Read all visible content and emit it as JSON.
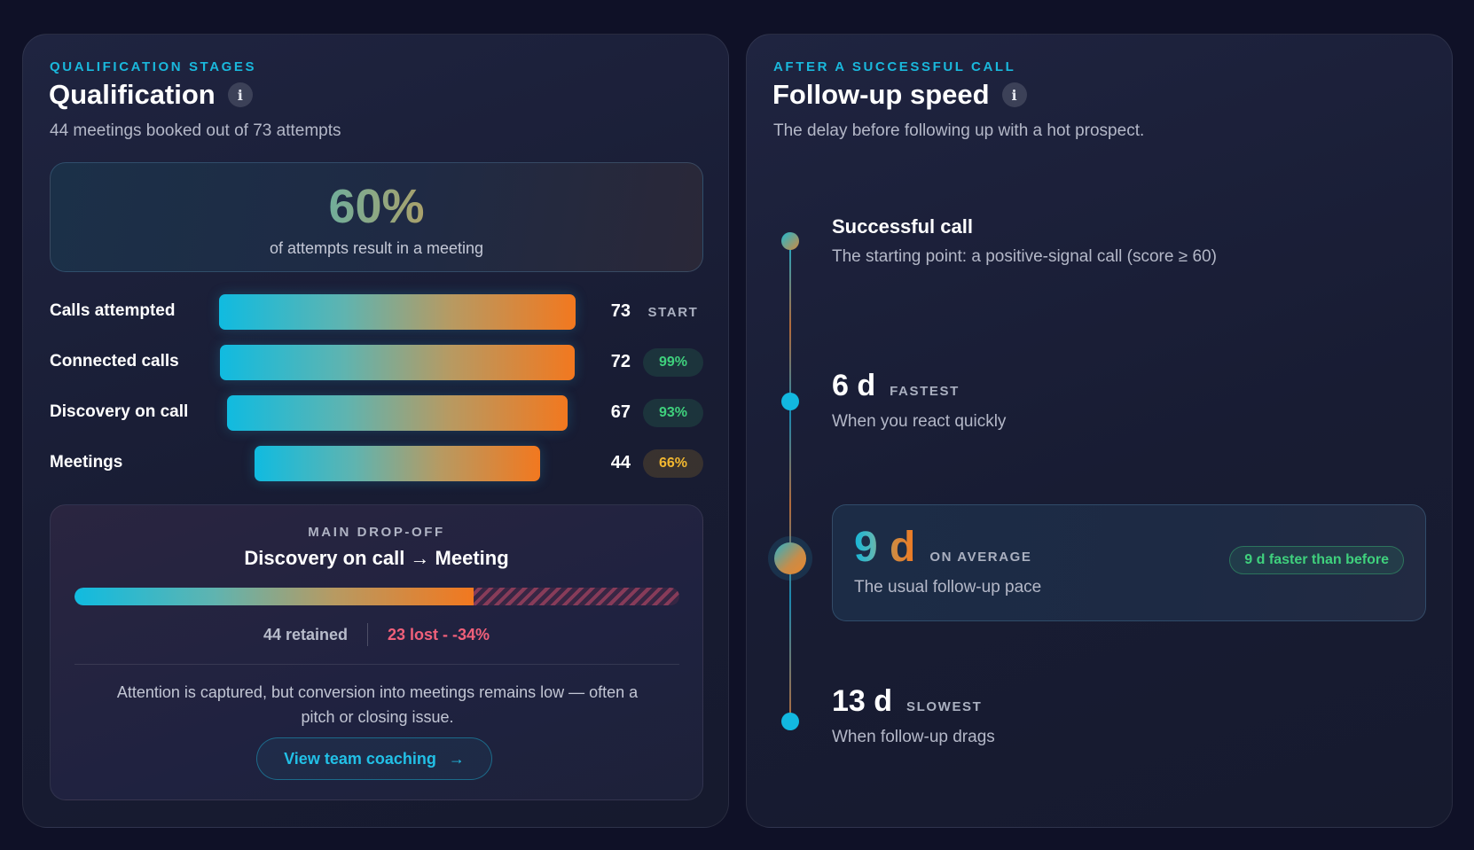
{
  "qualification": {
    "eyebrow": "QUALIFICATION STAGES",
    "title": "Qualification",
    "info_icon_glyph": "i",
    "subtitle": "44 meetings booked out of 73 attempts",
    "hero": {
      "value": "60%",
      "caption": "of attempts result in a meeting"
    },
    "funnel": [
      {
        "label": "Calls attempted",
        "count": "73",
        "badge": "START",
        "badge_type": "start",
        "value": 73
      },
      {
        "label": "Connected calls",
        "count": "72",
        "badge": "99%",
        "badge_type": "green",
        "value": 72
      },
      {
        "label": "Discovery on call",
        "count": "67",
        "badge": "93%",
        "badge_type": "green",
        "value": 67
      },
      {
        "label": "Meetings",
        "count": "44",
        "badge": "66%",
        "badge_type": "yellow",
        "value": 44
      }
    ],
    "dropoff": {
      "eyebrow": "MAIN DROP-OFF",
      "title": "Discovery on call → Meeting",
      "retained_fraction": 0.66,
      "retained": "44 retained",
      "lost": "23 lost - -34%",
      "note": "Attention is captured, but conversion into meetings remains low — often a pitch or closing issue.",
      "button_label": "View team coaching",
      "button_arrow": "→"
    }
  },
  "followup": {
    "eyebrow": "AFTER A SUCCESSFUL CALL",
    "title": "Follow-up speed",
    "info_icon_glyph": "i",
    "subtitle": "The delay before following up with a hot prospect.",
    "start": {
      "title": "Successful call",
      "desc": "The starting point: a positive-signal call (score ≥ 60)"
    },
    "fastest": {
      "value": "6 d",
      "tag": "FASTEST",
      "desc": "When you react quickly"
    },
    "average": {
      "value": "9 d",
      "tag": "ON AVERAGE",
      "desc": "The usual follow-up pace",
      "badge": "9 d faster than before"
    },
    "slowest": {
      "value": "13 d",
      "tag": "SLOWEST",
      "desc": "When follow-up drags"
    }
  },
  "colors": {
    "accent_cyan": "#1ab8dc",
    "accent_orange": "#f2781f",
    "positive_green": "#3fd17d",
    "warning_yellow": "#f2b830",
    "negative_red": "#f0607a"
  }
}
